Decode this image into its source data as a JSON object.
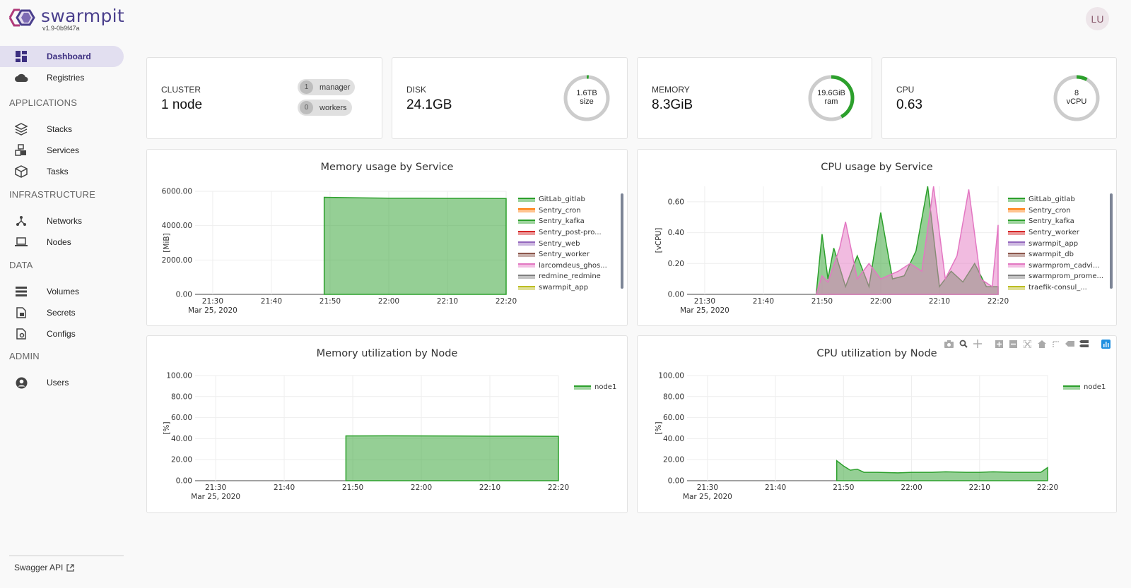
{
  "app": {
    "name": "swarmpit",
    "version": "v1.9-0b9f47a"
  },
  "user": {
    "initials": "LU"
  },
  "nav": {
    "dashboard": "Dashboard",
    "registries": "Registries",
    "sections": {
      "applications": "APPLICATIONS",
      "infrastructure": "INFRASTRUCTURE",
      "data": "DATA",
      "admin": "ADMIN"
    },
    "stacks": "Stacks",
    "services": "Services",
    "tasks": "Tasks",
    "networks": "Networks",
    "nodes": "Nodes",
    "volumes": "Volumes",
    "secrets": "Secrets",
    "configs": "Configs",
    "users": "Users",
    "swagger": "Swagger API"
  },
  "stats": {
    "cluster": {
      "title": "CLUSTER",
      "value": "1 node",
      "manager_count": "1",
      "manager_label": "manager",
      "worker_count": "0",
      "worker_label": "workers"
    },
    "disk": {
      "title": "DISK",
      "value": "24.1GB",
      "gauge_line1": "1.6TB",
      "gauge_line2": "size",
      "gauge_fraction": 0.015
    },
    "memory": {
      "title": "MEMORY",
      "value": "8.3GiB",
      "gauge_line1": "19.6GiB",
      "gauge_line2": "ram",
      "gauge_fraction": 0.42
    },
    "cpu": {
      "title": "CPU",
      "value": "0.63",
      "gauge_line1": "8",
      "gauge_line2": "vCPU",
      "gauge_fraction": 0.08
    }
  },
  "colors": {
    "accent": "#4a3f8c",
    "green": "#2ca02c",
    "gauge_track": "#cccccc"
  },
  "charts": {
    "mem_service": {
      "title": "Memory usage by Service",
      "ylabel": "[MiB]",
      "legend": [
        {
          "name": "GitLab_gitlab",
          "color": "#2ca02c"
        },
        {
          "name": "Sentry_cron",
          "color": "#ff7f0e"
        },
        {
          "name": "Sentry_kafka",
          "color": "#2ca02c"
        },
        {
          "name": "Sentry_post-pro...",
          "color": "#d62728"
        },
        {
          "name": "Sentry_web",
          "color": "#9467bd"
        },
        {
          "name": "Sentry_worker",
          "color": "#8c564b"
        },
        {
          "name": "larcomdeus_ghos...",
          "color": "#e377c2"
        },
        {
          "name": "redmine_redmine",
          "color": "#7f7f7f"
        },
        {
          "name": "swarmpit_app",
          "color": "#bcbd22"
        }
      ]
    },
    "cpu_service": {
      "title": "CPU usage by Service",
      "ylabel": "[vCPU]",
      "legend": [
        {
          "name": "GitLab_gitlab",
          "color": "#2ca02c"
        },
        {
          "name": "Sentry_cron",
          "color": "#ff7f0e"
        },
        {
          "name": "Sentry_kafka",
          "color": "#2ca02c"
        },
        {
          "name": "Sentry_worker",
          "color": "#d62728"
        },
        {
          "name": "swarmpit_app",
          "color": "#9467bd"
        },
        {
          "name": "swarmpit_db",
          "color": "#8c564b"
        },
        {
          "name": "swarmprom_cadvi...",
          "color": "#e377c2"
        },
        {
          "name": "swarmprom_prome...",
          "color": "#7f7f7f"
        },
        {
          "name": "traefik-consul_...",
          "color": "#bcbd22"
        }
      ]
    },
    "mem_node": {
      "title": "Memory utilization by Node",
      "ylabel": "[%]",
      "legend": [
        {
          "name": "node1",
          "color": "#2ca02c"
        }
      ]
    },
    "cpu_node": {
      "title": "CPU utilization by Node",
      "ylabel": "[%]",
      "legend": [
        {
          "name": "node1",
          "color": "#2ca02c"
        }
      ]
    }
  },
  "chart_data": [
    {
      "type": "area",
      "title": "Memory usage by Service",
      "ylabel": "[MiB]",
      "x_ticks": [
        "21:30",
        "21:40",
        "21:50",
        "22:00",
        "22:10",
        "22:20"
      ],
      "x_date": "Mar 25, 2020",
      "y_ticks": [
        "0.00",
        "2000.00",
        "4000.00",
        "6000.00"
      ],
      "ylim": [
        0,
        6000
      ],
      "series": [
        {
          "name": "GitLab_gitlab",
          "x": [
            "21:49",
            "21:55",
            "22:00",
            "22:05",
            "22:10",
            "22:15",
            "22:20"
          ],
          "values": [
            5650,
            5620,
            5600,
            5600,
            5590,
            5590,
            5580
          ]
        }
      ]
    },
    {
      "type": "area",
      "title": "CPU usage by Service",
      "ylabel": "[vCPU]",
      "x_ticks": [
        "21:30",
        "21:40",
        "21:50",
        "22:00",
        "22:10",
        "22:20"
      ],
      "x_date": "Mar 25, 2020",
      "y_ticks": [
        "0.00",
        "0.20",
        "0.40",
        "0.60"
      ],
      "ylim": [
        0,
        0.7
      ],
      "series": [
        {
          "name": "GitLab_gitlab",
          "x": [
            "21:49",
            "21:50",
            "21:51",
            "21:52",
            "21:54",
            "21:56",
            "21:58",
            "22:00",
            "22:02",
            "22:04",
            "22:06",
            "22:08",
            "22:10",
            "22:12",
            "22:14",
            "22:16",
            "22:18",
            "22:20"
          ],
          "values": [
            0,
            0.39,
            0.1,
            0.3,
            0.05,
            0.25,
            0.05,
            0.53,
            0.1,
            0.12,
            0.28,
            0.72,
            0.05,
            0.15,
            0.08,
            0.2,
            0.05,
            0.05
          ]
        },
        {
          "name": "swarmprom_cadvi...",
          "x": [
            "21:49",
            "21:50",
            "21:51",
            "21:53",
            "21:54",
            "21:56",
            "21:58",
            "22:00",
            "22:03",
            "22:05",
            "22:07",
            "22:09",
            "22:11",
            "22:13",
            "22:15",
            "22:17",
            "22:19",
            "22:20"
          ],
          "values": [
            0,
            0.12,
            0.08,
            0.3,
            0.47,
            0.1,
            0.2,
            0.1,
            0.15,
            0.2,
            0.15,
            0.7,
            0.1,
            0.25,
            0.68,
            0.1,
            0.05,
            0.45
          ]
        }
      ]
    },
    {
      "type": "area",
      "title": "Memory utilization by Node",
      "ylabel": "[%]",
      "x_ticks": [
        "21:30",
        "21:40",
        "21:50",
        "22:00",
        "22:10",
        "22:20"
      ],
      "x_date": "Mar 25, 2020",
      "y_ticks": [
        "0.00",
        "20.00",
        "40.00",
        "60.00",
        "80.00",
        "100.00"
      ],
      "ylim": [
        0,
        100
      ],
      "series": [
        {
          "name": "node1",
          "x": [
            "21:49",
            "21:55",
            "22:00",
            "22:05",
            "22:10",
            "22:15",
            "22:20"
          ],
          "values": [
            42.6,
            42.7,
            42.6,
            42.5,
            42.4,
            42.4,
            42.2
          ]
        }
      ]
    },
    {
      "type": "area",
      "title": "CPU utilization by Node",
      "ylabel": "[%]",
      "x_ticks": [
        "21:30",
        "21:40",
        "21:50",
        "22:00",
        "22:10",
        "22:20"
      ],
      "x_date": "Mar 25, 2020",
      "y_ticks": [
        "0.00",
        "20.00",
        "40.00",
        "60.00",
        "80.00",
        "100.00"
      ],
      "ylim": [
        0,
        100
      ],
      "series": [
        {
          "name": "node1",
          "x": [
            "21:49",
            "21:50",
            "21:51",
            "21:52",
            "21:53",
            "21:55",
            "21:58",
            "22:00",
            "22:03",
            "22:05",
            "22:08",
            "22:10",
            "22:12",
            "22:15",
            "22:18",
            "22:19",
            "22:20"
          ],
          "values": [
            19,
            14,
            10,
            11,
            8,
            8,
            7.5,
            8,
            8,
            8.5,
            8,
            8,
            8.5,
            8,
            8,
            8,
            12.5
          ]
        }
      ]
    }
  ]
}
